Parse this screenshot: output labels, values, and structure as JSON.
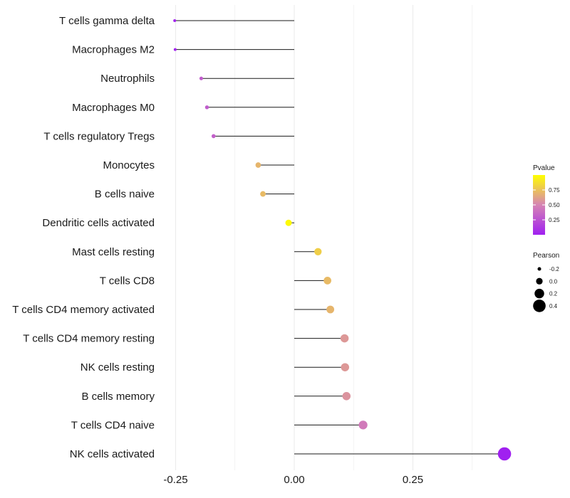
{
  "chart_data": {
    "type": "lollipop",
    "title": "",
    "xlabel": "",
    "ylabel": "",
    "xlim": [
      -0.25,
      0.45
    ],
    "xticks": [
      {
        "value": -0.25,
        "label": "-0.25"
      },
      {
        "value": 0.0,
        "label": "0.00"
      },
      {
        "value": 0.25,
        "label": "0.25"
      }
    ],
    "minor_gridlines": [
      -0.125,
      0.125,
      0.375
    ],
    "categories": [
      {
        "name": "T cells gamma delta",
        "pearson": -0.252,
        "pvalue": 0.02
      },
      {
        "name": "Macrophages M2",
        "pearson": -0.251,
        "pvalue": 0.02
      },
      {
        "name": "Neutrophils",
        "pearson": -0.196,
        "pvalue": 0.3
      },
      {
        "name": "Macrophages M0",
        "pearson": -0.184,
        "pvalue": 0.3
      },
      {
        "name": "T cells regulatory  Tregs",
        "pearson": -0.17,
        "pvalue": 0.32
      },
      {
        "name": "Monocytes",
        "pearson": -0.076,
        "pvalue": 0.7
      },
      {
        "name": "B cells naive",
        "pearson": -0.066,
        "pvalue": 0.72
      },
      {
        "name": "Dendritic cells activated",
        "pearson": -0.012,
        "pvalue": 0.98
      },
      {
        "name": "Mast cells resting",
        "pearson": 0.05,
        "pvalue": 0.8
      },
      {
        "name": "T cells CD8",
        "pearson": 0.07,
        "pvalue": 0.72
      },
      {
        "name": "T cells CD4 memory activated",
        "pearson": 0.076,
        "pvalue": 0.7
      },
      {
        "name": "T cells CD4 memory resting",
        "pearson": 0.106,
        "pvalue": 0.58
      },
      {
        "name": "NK cells resting",
        "pearson": 0.107,
        "pvalue": 0.58
      },
      {
        "name": "B cells memory",
        "pearson": 0.11,
        "pvalue": 0.56
      },
      {
        "name": "T cells CD4 naive",
        "pearson": 0.145,
        "pvalue": 0.45
      },
      {
        "name": "NK cells activated",
        "pearson": 0.443,
        "pvalue": 0.001
      }
    ],
    "color_legend": {
      "title": "Pvalue",
      "ticks": [
        {
          "value": 0.25,
          "label": "0.25"
        },
        {
          "value": 0.5,
          "label": "0.50"
        },
        {
          "value": 0.75,
          "label": "0.75"
        }
      ],
      "range": [
        0.0,
        1.0
      ],
      "low_color": "#a020f0",
      "high_color": "#ffff00"
    },
    "size_legend": {
      "title": "Pearson",
      "entries": [
        {
          "value": -0.2,
          "label": "-0.2"
        },
        {
          "value": 0.0,
          "label": "0.0"
        },
        {
          "value": 0.2,
          "label": "0.2"
        },
        {
          "value": 0.4,
          "label": "0.4"
        }
      ]
    },
    "colors": {
      "stem": "#1a1a1a",
      "gridline": "#ebebeb",
      "text": "#1a1a1a"
    }
  }
}
